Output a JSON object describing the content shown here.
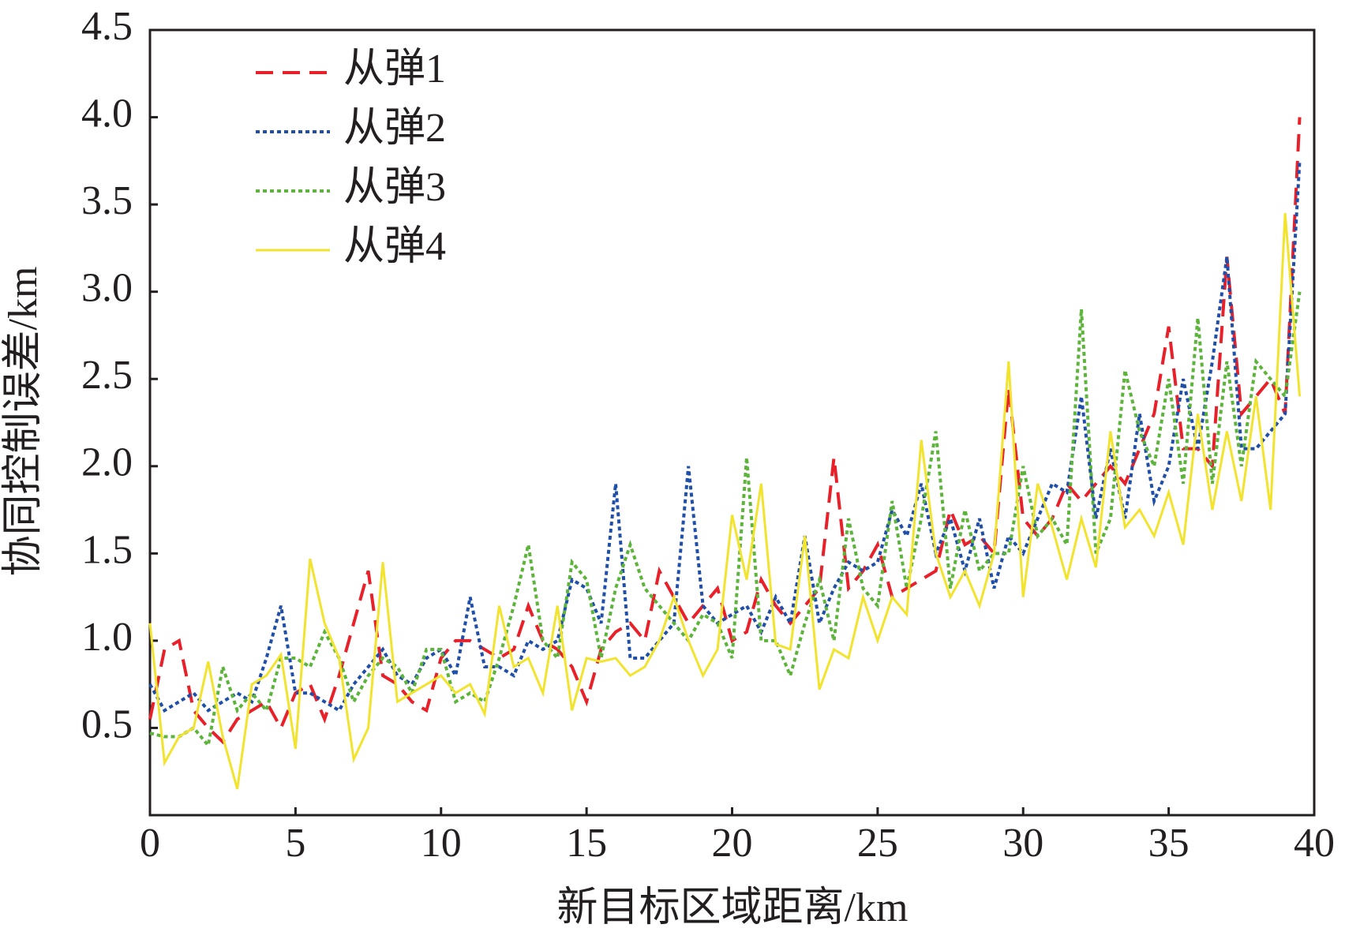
{
  "chart_data": {
    "type": "line",
    "x_label": "新目标区域距离/km",
    "y_label": "协同控制误差/km",
    "xlim": [
      0,
      40
    ],
    "xticks": [
      0,
      5,
      10,
      15,
      20,
      25,
      30,
      35,
      40
    ],
    "ylim": [
      0,
      4.5
    ],
    "yticks": [
      {
        "value": 0.5,
        "label": "0.5"
      },
      {
        "value": 1,
        "label": "1.0"
      },
      {
        "value": 1.5,
        "label": "1.5"
      },
      {
        "value": 2,
        "label": "2.0"
      },
      {
        "value": 2.5,
        "label": "2.5"
      },
      {
        "value": 3,
        "label": "3.0"
      },
      {
        "value": 3.5,
        "label": "3.5"
      },
      {
        "value": 4,
        "label": "4.0"
      },
      {
        "value": 4.5,
        "label": "4.5"
      }
    ],
    "legend": "upper left",
    "x": [
      0,
      0.5,
      1,
      1.5,
      2,
      2.5,
      3,
      3.5,
      4,
      4.5,
      5,
      5.5,
      6,
      6.5,
      7,
      7.5,
      8,
      8.5,
      9,
      9.5,
      10,
      10.5,
      11,
      11.5,
      12,
      12.5,
      13,
      13.5,
      14,
      14.5,
      15,
      15.5,
      16,
      16.5,
      17,
      17.5,
      18,
      18.5,
      19,
      19.5,
      20,
      20.5,
      21,
      21.5,
      22,
      22.5,
      23,
      23.5,
      24,
      24.5,
      25,
      25.5,
      26,
      26.5,
      27,
      27.5,
      28,
      28.5,
      29,
      29.5,
      30,
      30.5,
      31,
      31.5,
      32,
      32.5,
      33,
      33.5,
      34,
      34.5,
      35,
      35.5,
      36,
      36.5,
      37,
      37.5,
      38,
      38.5,
      39,
      39.5
    ],
    "series": [
      {
        "name": "从弹1",
        "color": "#e8202a",
        "dash": "dashed",
        "values": [
          0.55,
          0.95,
          1.0,
          0.6,
          0.5,
          0.42,
          0.55,
          0.6,
          0.65,
          0.5,
          0.7,
          0.75,
          0.55,
          0.8,
          1.1,
          1.4,
          0.8,
          0.75,
          0.65,
          0.6,
          0.9,
          1.0,
          1.0,
          0.95,
          0.9,
          0.95,
          1.2,
          1.0,
          0.95,
          0.85,
          0.65,
          0.95,
          1.05,
          1.1,
          1.0,
          1.4,
          1.25,
          1.1,
          1.2,
          1.3,
          1.0,
          1.05,
          1.35,
          1.2,
          1.1,
          1.2,
          1.3,
          2.05,
          1.3,
          1.4,
          1.55,
          1.25,
          1.3,
          1.35,
          1.4,
          1.75,
          1.55,
          1.6,
          1.5,
          2.45,
          1.7,
          1.6,
          1.7,
          1.9,
          1.8,
          1.9,
          2.0,
          1.9,
          2.1,
          2.3,
          2.8,
          2.1,
          2.1,
          2.0,
          3.2,
          2.3,
          2.4,
          2.5,
          2.3,
          4.0
        ]
      },
      {
        "name": "从弹2",
        "color": "#1f4fa8",
        "dash": "dotted",
        "values": [
          0.75,
          0.6,
          0.65,
          0.7,
          0.6,
          0.65,
          0.7,
          0.65,
          0.9,
          1.2,
          0.7,
          0.7,
          0.65,
          0.6,
          0.75,
          0.85,
          0.95,
          0.8,
          0.75,
          0.9,
          0.95,
          0.8,
          1.25,
          0.85,
          0.85,
          0.8,
          1.0,
          0.95,
          1.0,
          1.35,
          1.3,
          1.1,
          1.9,
          0.9,
          0.9,
          1.0,
          1.1,
          2.0,
          1.2,
          1.1,
          1.15,
          1.2,
          1.05,
          1.25,
          1.1,
          1.6,
          1.1,
          1.3,
          1.45,
          1.4,
          1.45,
          1.75,
          1.6,
          1.9,
          1.5,
          1.7,
          1.4,
          1.7,
          1.3,
          1.6,
          1.5,
          1.7,
          1.9,
          1.85,
          2.4,
          1.7,
          2.1,
          1.7,
          2.3,
          1.8,
          2.0,
          2.5,
          2.1,
          2.6,
          3.2,
          2.1,
          2.1,
          2.2,
          2.3,
          3.75
        ]
      },
      {
        "name": "从弹3",
        "color": "#5db43a",
        "dash": "dotted",
        "values": [
          0.47,
          0.45,
          0.45,
          0.5,
          0.4,
          0.85,
          0.6,
          0.7,
          0.6,
          0.9,
          0.9,
          0.85,
          1.05,
          0.9,
          0.65,
          0.8,
          0.9,
          0.85,
          0.7,
          0.95,
          0.95,
          0.65,
          0.7,
          0.65,
          0.9,
          1.2,
          1.55,
          1.0,
          0.9,
          1.45,
          1.35,
          0.9,
          1.3,
          1.55,
          1.3,
          1.2,
          1.1,
          1.0,
          1.15,
          1.1,
          0.9,
          2.05,
          1.0,
          1.0,
          0.8,
          1.1,
          1.35,
          1.0,
          1.7,
          1.3,
          1.2,
          1.8,
          1.3,
          1.7,
          2.2,
          1.3,
          1.75,
          1.4,
          1.5,
          1.5,
          2.0,
          1.6,
          1.7,
          1.55,
          2.9,
          1.5,
          1.7,
          2.55,
          2.2,
          2.0,
          2.5,
          1.9,
          2.85,
          1.9,
          2.6,
          2.0,
          2.6,
          2.5,
          2.4,
          3.0
        ]
      },
      {
        "name": "从弹4",
        "color": "#f2e42e",
        "dash": "solid",
        "values": [
          1.1,
          0.3,
          0.45,
          0.5,
          0.88,
          0.45,
          0.15,
          0.75,
          0.8,
          0.92,
          0.38,
          1.47,
          1.1,
          0.9,
          0.32,
          0.5,
          1.45,
          0.65,
          0.7,
          0.75,
          0.8,
          0.7,
          0.75,
          0.58,
          1.2,
          0.85,
          0.9,
          0.7,
          1.2,
          0.6,
          0.9,
          0.88,
          0.9,
          0.8,
          0.85,
          1.0,
          1.25,
          1.0,
          0.8,
          0.95,
          1.72,
          1.35,
          1.9,
          0.98,
          0.95,
          1.6,
          0.72,
          0.95,
          0.9,
          1.25,
          1.0,
          1.25,
          1.15,
          2.15,
          1.5,
          1.25,
          1.4,
          1.2,
          1.5,
          2.6,
          1.25,
          1.9,
          1.65,
          1.35,
          1.7,
          1.42,
          2.2,
          1.65,
          1.75,
          1.6,
          1.85,
          1.55,
          2.3,
          1.75,
          2.2,
          1.8,
          2.4,
          1.75,
          3.45,
          2.4
        ]
      }
    ]
  }
}
